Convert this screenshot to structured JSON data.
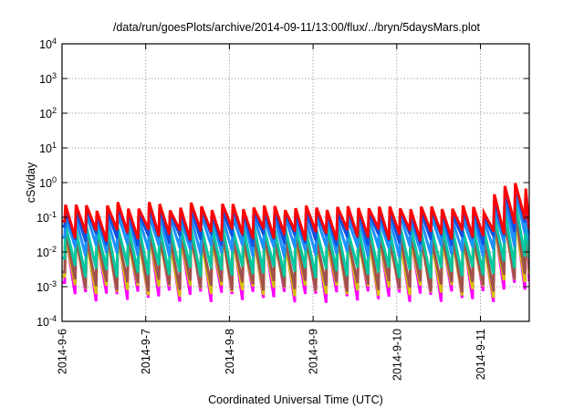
{
  "chart_data": {
    "type": "line",
    "title": "/data/run/goesPlots/archive/2014-09-11/13:00/flux/../bryn/5daysMars.plot",
    "xlabel": "Coordinated Universal Time (UTC)",
    "ylabel": "cSv/day",
    "yscale": "log",
    "ylim": [
      0.0001,
      10000
    ],
    "xlim_hours_from_start": [
      0,
      134
    ],
    "grid": true,
    "legend": "none",
    "y_ticks": [
      {
        "value": 0.0001,
        "base": "10",
        "exp": "-4"
      },
      {
        "value": 0.001,
        "base": "10",
        "exp": "-3"
      },
      {
        "value": 0.01,
        "base": "10",
        "exp": "-2"
      },
      {
        "value": 0.1,
        "base": "10",
        "exp": "-1"
      },
      {
        "value": 1,
        "base": "10",
        "exp": "0"
      },
      {
        "value": 10,
        "base": "10",
        "exp": "1"
      },
      {
        "value": 100,
        "base": "10",
        "exp": "2"
      },
      {
        "value": 1000,
        "base": "10",
        "exp": "3"
      },
      {
        "value": 10000,
        "base": "10",
        "exp": "4"
      }
    ],
    "x_ticks": [
      {
        "hours": 0,
        "label": "2014-9-6"
      },
      {
        "hours": 24,
        "label": "2014-9-7"
      },
      {
        "hours": 48,
        "label": "2014-9-8"
      },
      {
        "hours": 72,
        "label": "2014-9-9"
      },
      {
        "hours": 96,
        "label": "2014-9-10"
      },
      {
        "hours": 120,
        "label": "2014-9-11"
      }
    ],
    "cycle_period_hours": 3,
    "cycle_first_peak_hours": 1,
    "cycle_scale": [
      1.2,
      1.0,
      1.1,
      0.9,
      1.05,
      1.2,
      0.95,
      1.0,
      1.25,
      1.1,
      0.9,
      1.0,
      1.15,
      1.0,
      0.95,
      1.2,
      1.05,
      0.9,
      1.1,
      1.0,
      0.95,
      0.9,
      1.0,
      0.95,
      0.9,
      0.95,
      1.0,
      0.9,
      0.95,
      1.05,
      0.95,
      0.9,
      1.0,
      0.95,
      0.9,
      0.95,
      1.0,
      0.9,
      0.95,
      1.0,
      0.8,
      2.2,
      3.5,
      5.2,
      3.8,
      4.0,
      3.0
    ],
    "series": [
      {
        "name": "magenta",
        "color": "#ff00ff",
        "peak": 0.03,
        "trough": 0.0006
      },
      {
        "name": "yellow",
        "color": "#d4c400",
        "peak": 0.022,
        "trough": 0.0009
      },
      {
        "name": "brown",
        "color": "#a0524d",
        "peak": 0.028,
        "trough": 0.0012
      },
      {
        "name": "teal",
        "color": "#00c8a0",
        "peak": 0.05,
        "trough": 0.003
      },
      {
        "name": "light-blue",
        "color": "#1e90ff",
        "peak": 0.1,
        "trough": 0.012
      },
      {
        "name": "blue",
        "color": "#1050e0",
        "peak": 0.15,
        "trough": 0.025
      },
      {
        "name": "red",
        "color": "#ff0000",
        "peak": 0.2,
        "trough": 0.035
      }
    ]
  }
}
